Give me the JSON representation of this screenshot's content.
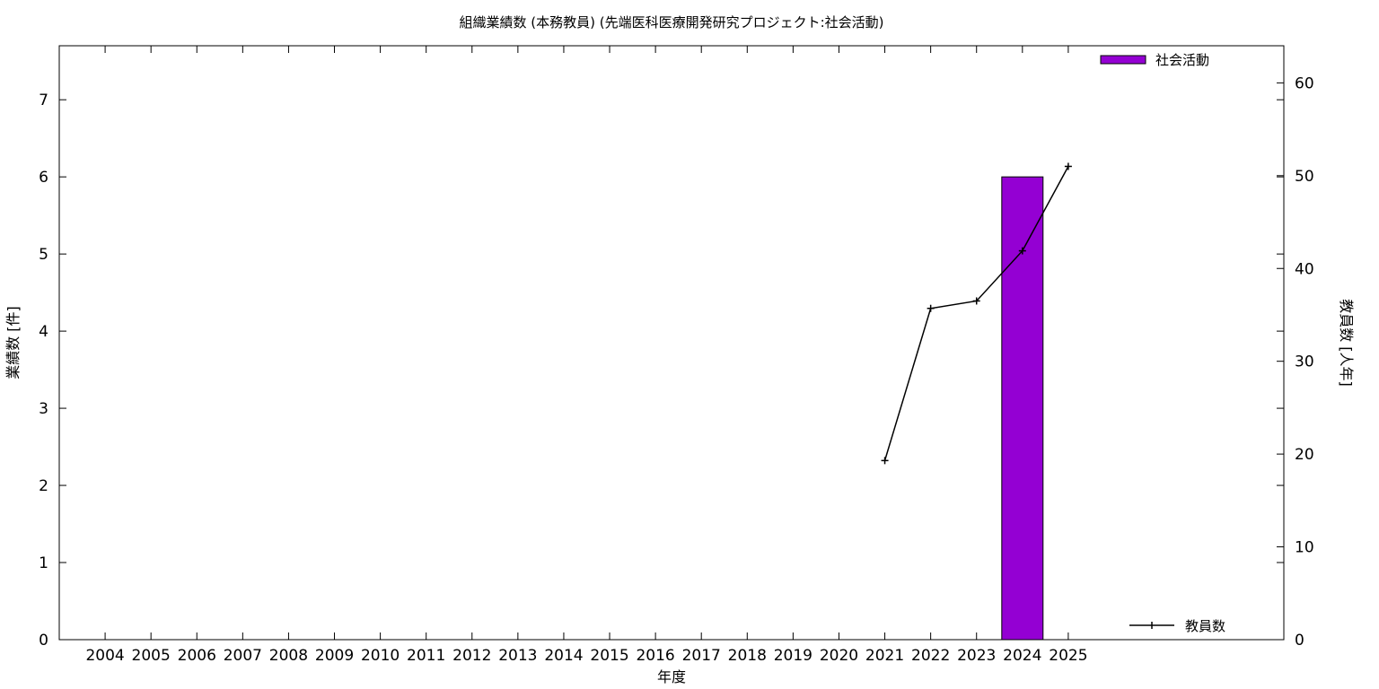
{
  "chart_data": {
    "type": "bar",
    "title": "組織業績数 (本務教員) (先端医科医療開発研究プロジェクト:社会活動)",
    "xlabel": "年度",
    "ylabel": "業績数 [件]",
    "y2label": "教員数 [人年]",
    "categories": [
      "2004",
      "2005",
      "2006",
      "2007",
      "2008",
      "2009",
      "2010",
      "2011",
      "2012",
      "2013",
      "2014",
      "2015",
      "2016",
      "2017",
      "2018",
      "2019",
      "2020",
      "2021",
      "2022",
      "2023",
      "2024",
      "2025"
    ],
    "series": [
      {
        "name": "社会活動",
        "kind": "bar",
        "axis": "left",
        "color": "#9400d3",
        "values": [
          0,
          0,
          0,
          0,
          0,
          0,
          0,
          0,
          0,
          0,
          0,
          0,
          0,
          0,
          0,
          0,
          0,
          0,
          0,
          0,
          6,
          0
        ]
      },
      {
        "name": "教員数",
        "kind": "line",
        "axis": "right",
        "color": "#000000",
        "x": [
          "2021",
          "2022",
          "2023",
          "2024",
          "2025"
        ],
        "values": [
          19.3,
          35.7,
          36.5,
          41.9,
          51.0
        ]
      }
    ],
    "ylim": [
      0,
      7.7
    ],
    "y2lim": [
      0,
      64
    ],
    "yticks": [
      0,
      1,
      2,
      3,
      4,
      5,
      6,
      7
    ],
    "y2ticks": [
      0,
      10,
      20,
      30,
      40,
      50,
      60
    ],
    "grid": false,
    "legend": [
      "top-right",
      "bottom-right"
    ]
  }
}
